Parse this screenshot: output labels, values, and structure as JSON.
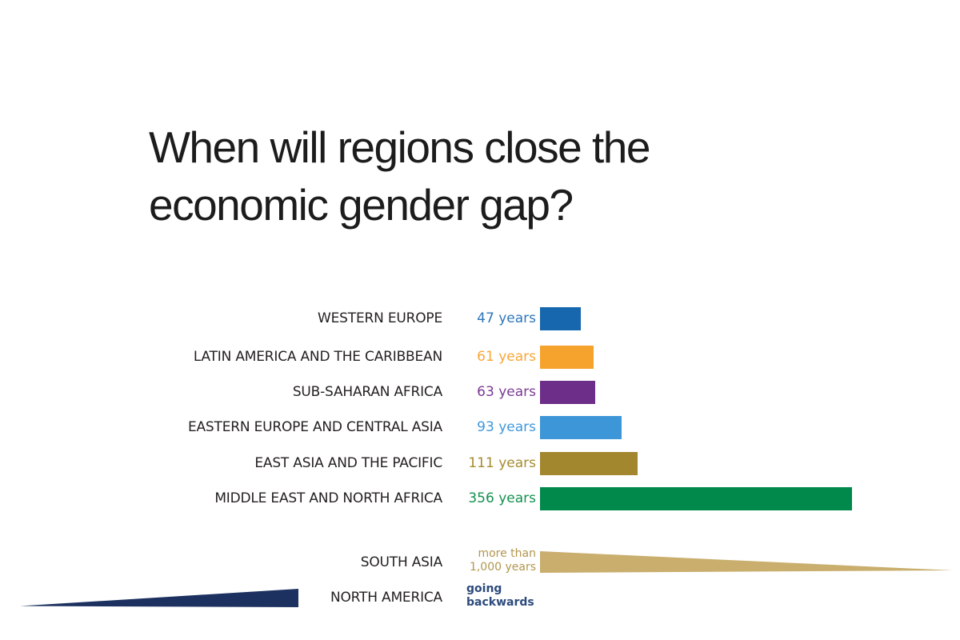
{
  "title": {
    "line1": "When will regions close the",
    "line2": "economic gender gap?"
  },
  "chart_data": {
    "type": "bar",
    "orientation": "horizontal",
    "unit": "years",
    "title": "When will regions close the economic gender gap?",
    "categories": [
      "WESTERN EUROPE",
      "LATIN AMERICA AND THE CARIBBEAN",
      "SUB-SAHARAN AFRICA",
      "EASTERN EUROPE AND CENTRAL ASIA",
      "EAST ASIA AND THE PACIFIC",
      "MIDDLE EAST AND NORTH AFRICA",
      "SOUTH ASIA",
      "NORTH AMERICA"
    ],
    "values": [
      47,
      61,
      63,
      93,
      111,
      356,
      ">1000",
      "negative"
    ],
    "rows": [
      {
        "label": "WESTERN EUROPE",
        "years": 47,
        "value_label": "47 years",
        "bar_color": "#1667ae",
        "value_color": "#2e76ba"
      },
      {
        "label": "LATIN AMERICA AND THE CARIBBEAN",
        "years": 61,
        "value_label": "61 years",
        "bar_color": "#f5a32c",
        "value_color": "#f7a737"
      },
      {
        "label": "SUB-SAHARAN AFRICA",
        "years": 63,
        "value_label": "63 years",
        "bar_color": "#6c2e88",
        "value_color": "#7b3a94"
      },
      {
        "label": "EASTERN EUROPE AND CENTRAL ASIA",
        "years": 93,
        "value_label": "93 years",
        "bar_color": "#3d96d8",
        "value_color": "#3f98da"
      },
      {
        "label": "EAST ASIA AND THE PACIFIC",
        "years": 111,
        "value_label": "111 years",
        "bar_color": "#a3872e",
        "value_color": "#a58b2f"
      },
      {
        "label": "MIDDLE EAST AND NORTH AFRICA",
        "years": 356,
        "value_label": "356 years",
        "bar_color": "#00894a",
        "value_color": "#13914f"
      }
    ],
    "special_rows": [
      {
        "label": "SOUTH ASIA",
        "value_label": "more than 1,000 years",
        "shape": "tapered-bar-pointing-right",
        "shape_color": "#c9ae6d",
        "value_color": "#b2964e"
      },
      {
        "label": "NORTH AMERICA",
        "value_label": "going backwards",
        "shape": "tapered-bar-pointing-left",
        "shape_color": "#1d3160",
        "value_color": "#2c4a7c"
      }
    ],
    "label_color": "#231f20",
    "background": "#ffffff",
    "legend": "none",
    "grid": false
  }
}
